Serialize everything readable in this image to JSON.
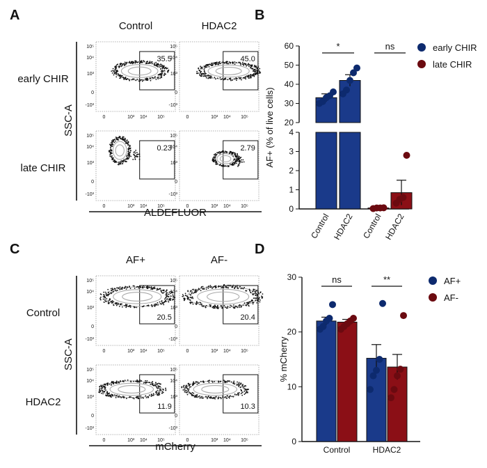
{
  "panels": {
    "A": {
      "letter": "A",
      "col_labels": [
        "Control",
        "HDAC2"
      ],
      "row_labels": [
        "early CHIR",
        "late CHIR"
      ],
      "y_axis_title": "SSC-A",
      "x_axis_title": "ALDEFLUOR",
      "gate_values": [
        "35.5",
        "45.0",
        "0.23",
        "2.79"
      ]
    },
    "C": {
      "letter": "C",
      "col_labels": [
        "AF+",
        "AF-"
      ],
      "row_labels": [
        "Control",
        "HDAC2"
      ],
      "y_axis_title": "SSC-A",
      "x_axis_title": "mCherry",
      "gate_values": [
        "20.5",
        "20.4",
        "11.9",
        "10.3"
      ]
    },
    "flow_tick_labels": {
      "y": [
        "10⁵",
        "10⁴",
        "10³",
        "0",
        "-10³"
      ],
      "x": [
        "0",
        "10³",
        "10⁴",
        "10⁵"
      ]
    },
    "B": {
      "letter": "B"
    },
    "D": {
      "letter": "D"
    }
  },
  "colors": {
    "blue": "#1a3a8a",
    "red": "#8b0f16",
    "dot_blue": "#0d2a6e",
    "dot_red": "#6b0a10"
  },
  "chart_data": [
    {
      "panel": "B",
      "type": "bar",
      "broken_y_axis": true,
      "ylabel": "AF+ (% of live cells)",
      "ylim_lower": [
        0,
        4
      ],
      "ylim_upper": [
        20,
        60
      ],
      "yticks_lower": [
        "0",
        "1",
        "2",
        "3",
        "4"
      ],
      "yticks_upper": [
        "20",
        "30",
        "40",
        "50",
        "60"
      ],
      "categories": [
        "Control",
        "HDAC2",
        "Control",
        "HDAC2"
      ],
      "groups": [
        "early CHIR",
        "early CHIR",
        "late CHIR",
        "late CHIR"
      ],
      "values": [
        33,
        42,
        0.05,
        0.85
      ],
      "errors": [
        2,
        3,
        0.04,
        0.65
      ],
      "points": [
        [
          30,
          31,
          33,
          34,
          36
        ],
        [
          35,
          37,
          42,
          46,
          48.5
        ],
        [
          0.02,
          0.05,
          0.05,
          0.06
        ],
        [
          0.3,
          0.5,
          0.6,
          2.8
        ]
      ],
      "legend": [
        "early CHIR",
        "late CHIR"
      ],
      "significance": [
        "*",
        "ns"
      ]
    },
    {
      "panel": "D",
      "type": "bar",
      "ylabel": "% mCherry",
      "ylim": [
        0,
        30
      ],
      "yticks": [
        "0",
        "10",
        "20",
        "30"
      ],
      "groups": [
        "Control",
        "HDAC2"
      ],
      "series": [
        {
          "name": "AF+",
          "values": [
            22,
            15.2
          ],
          "errors": [
            0.7,
            2.5
          ],
          "points": [
            [
              20.5,
              21,
              22,
              22.5,
              25
            ],
            [
              9.5,
              12,
              13,
              15,
              25.2
            ]
          ]
        },
        {
          "name": "AF-",
          "values": [
            21.8,
            13.6
          ],
          "errors": [
            0.5,
            2.3
          ],
          "points": [
            [
              20.5,
              21,
              21.5,
              22,
              22.5
            ],
            [
              8,
              9.5,
              12,
              13.2,
              23
            ]
          ]
        }
      ],
      "legend": [
        "AF+",
        "AF-"
      ],
      "significance": [
        "ns",
        "**"
      ]
    }
  ]
}
